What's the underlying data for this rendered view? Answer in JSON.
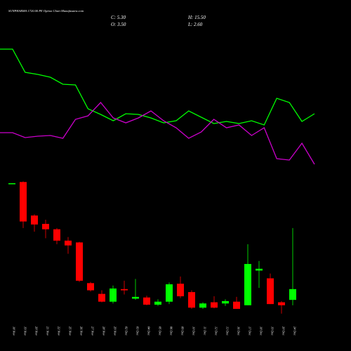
{
  "chart_data": {
    "type": "candlestick",
    "title": "SUNPHARMA 1720.00 PE Option  Chart Munafasutra.com",
    "summary": {
      "close_label": "C: 5.30",
      "high_label": "H: 15.50",
      "open_label": "O: 3.50",
      "low_label": "L: 2.60"
    },
    "categories": [
      "18 Nov",
      "19 Nov",
      "20 Nov",
      "21 Nov",
      "22 Nov",
      "25 Nov",
      "26 Nov",
      "27 Nov",
      "28 Nov",
      "29 Nov",
      "02 Dec",
      "03 Dec",
      "04 Dec",
      "05 Dec",
      "06 Dec",
      "09 Dec",
      "10 Dec",
      "11 Dec",
      "12 Dec",
      "13 Dec",
      "16 Dec",
      "17 Dec",
      "18 Dec",
      "19 Dec",
      "20 Dec",
      "24 Dec"
    ],
    "open": [
      23.0,
      23.2,
      17.6,
      16.2,
      15.3,
      13.4,
      13.1,
      6.3,
      4.5,
      3.2,
      5.3,
      3.7,
      3.9,
      2.7,
      3.2,
      6.2,
      4.8,
      2.2,
      3.1,
      2.9,
      3.2,
      2.6,
      8.4,
      7.1,
      3.1,
      3.5
    ],
    "high": [
      23.0,
      23.3,
      17.8,
      16.9,
      15.5,
      14.0,
      13.2,
      6.5,
      5.1,
      5.9,
      6.7,
      7.0,
      4.2,
      3.6,
      6.4,
      7.4,
      5.1,
      3.1,
      4.1,
      3.6,
      4.0,
      12.8,
      10.0,
      7.9,
      3.3,
      15.5
    ],
    "low": [
      23.0,
      15.5,
      14.9,
      13.8,
      12.8,
      11.2,
      6.5,
      4.9,
      3.1,
      2.9,
      4.4,
      3.5,
      2.6,
      2.5,
      2.8,
      3.8,
      2.0,
      2.0,
      2.1,
      2.5,
      2.0,
      2.6,
      5.5,
      2.8,
      1.2,
      2.6
    ],
    "close": [
      23.0,
      16.6,
      16.1,
      15.3,
      13.4,
      12.6,
      6.7,
      5.1,
      3.2,
      5.4,
      5.1,
      4.0,
      2.7,
      3.2,
      6.1,
      4.1,
      2.2,
      2.9,
      2.2,
      3.3,
      2.0,
      9.5,
      8.7,
      2.8,
      2.6,
      5.3
    ],
    "ylim": [
      0,
      23.7
    ],
    "up_color": "#00ff00",
    "down_color": "#ff0000",
    "lines": {
      "ylim": [
        0,
        300
      ],
      "series": [
        {
          "color": "#00ff00",
          "values": [
            230,
            230,
            197,
            194,
            190,
            180,
            179,
            145,
            137,
            128,
            138,
            137,
            132,
            125,
            128,
            142,
            133,
            124,
            127,
            124,
            128,
            122,
            160,
            154,
            127,
            138
          ]
        },
        {
          "color": "#cc00cc",
          "values": [
            111,
            111,
            104,
            106,
            107,
            103,
            130,
            135,
            154,
            132,
            125,
            132,
            142,
            128,
            118,
            103,
            112,
            130,
            118,
            122,
            107,
            118,
            74,
            72,
            96,
            66
          ]
        }
      ]
    }
  }
}
